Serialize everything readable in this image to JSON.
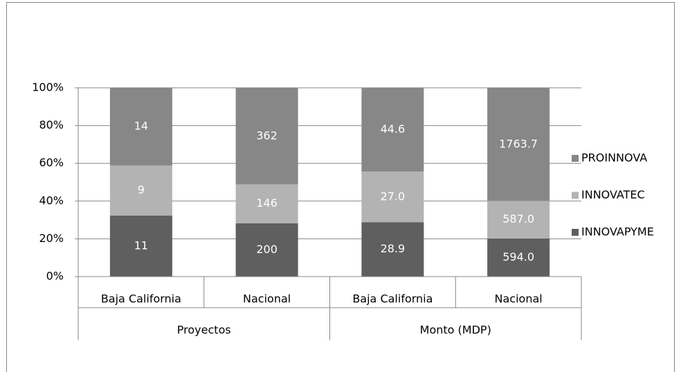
{
  "chart_data": {
    "type": "stacked_percent_bar",
    "groups": [
      {
        "name": "Proyectos",
        "categories": [
          "Baja California",
          "Nacional"
        ]
      },
      {
        "name": "Monto (MDP)",
        "categories": [
          "Baja California",
          "Nacional"
        ]
      }
    ],
    "series": [
      {
        "name": "INNOVAPYME",
        "color": "#5f5f5f",
        "values": [
          11,
          200,
          28.9,
          594.0
        ],
        "value_labels": [
          "11",
          "200",
          "28.9",
          "594.0"
        ]
      },
      {
        "name": "INNOVATEC",
        "color": "#b3b3b3",
        "values": [
          9,
          146,
          27.0,
          587.0
        ],
        "value_labels": [
          "9",
          "146",
          "27.0",
          "587.0"
        ]
      },
      {
        "name": "PROINNOVA",
        "color": "#878787",
        "values": [
          14,
          362,
          44.6,
          1763.7
        ],
        "value_labels": [
          "14",
          "362",
          "44.6",
          "1763.7"
        ]
      }
    ],
    "ylim": [
      0,
      100
    ],
    "yticks": [
      {
        "value": 0,
        "label": "0%"
      },
      {
        "value": 20,
        "label": "20%"
      },
      {
        "value": 40,
        "label": "40%"
      },
      {
        "value": 60,
        "label": "60%"
      },
      {
        "value": 80,
        "label": "80%"
      },
      {
        "value": 100,
        "label": "100%"
      }
    ],
    "grid": true,
    "legend": "right"
  }
}
